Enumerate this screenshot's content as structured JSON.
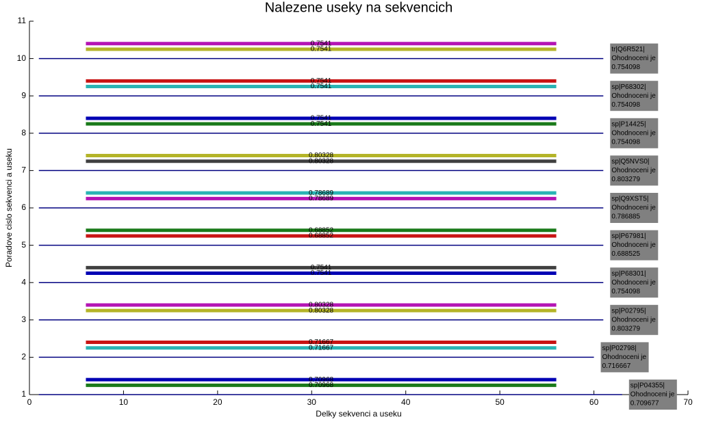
{
  "chart_data": {
    "type": "segments",
    "title": "Nalezene useky na sekvencich",
    "xlabel": "Delky sekvenci a useku",
    "ylabel": "Poradove cislo sekvenci a useku",
    "xlim": [
      0,
      70
    ],
    "ylim": [
      1,
      11
    ],
    "xticks": [
      0,
      10,
      20,
      30,
      40,
      50,
      60,
      70
    ],
    "yticks": [
      1,
      2,
      3,
      4,
      5,
      6,
      7,
      8,
      9,
      10,
      11
    ],
    "sequence_color": "#000080",
    "sequences": [
      {
        "y": 1,
        "x": [
          1,
          63
        ],
        "name": "sp|P04355|",
        "caption": "Ohodnoceni je",
        "score": 0.709677,
        "segments": [
          {
            "y": 1.4,
            "x": [
              6,
              56
            ],
            "value": 0.70968,
            "color": "#0000b4"
          },
          {
            "y": 1.25,
            "x": [
              6,
              56
            ],
            "value": 0.70968,
            "color": "#1a7a1a"
          }
        ]
      },
      {
        "y": 2,
        "x": [
          1,
          60
        ],
        "name": "sp|P02798|",
        "caption": "Ohodnoceni je",
        "score": 0.716667,
        "segments": [
          {
            "y": 2.4,
            "x": [
              6,
              56
            ],
            "value": 0.71667,
            "color": "#c81414"
          },
          {
            "y": 2.25,
            "x": [
              6,
              56
            ],
            "value": 0.71667,
            "color": "#2ab4b4"
          }
        ]
      },
      {
        "y": 3,
        "x": [
          1,
          61
        ],
        "name": "sp|P02795|",
        "caption": "Ohodnoceni je",
        "score": 0.803279,
        "segments": [
          {
            "y": 3.4,
            "x": [
              6,
              56
            ],
            "value": 0.80328,
            "color": "#b414b4"
          },
          {
            "y": 3.25,
            "x": [
              6,
              56
            ],
            "value": 0.80328,
            "color": "#b4b428"
          }
        ]
      },
      {
        "y": 4,
        "x": [
          1,
          61
        ],
        "name": "sp|P68301|",
        "caption": "Ohodnoceni je",
        "score": 0.754098,
        "segments": [
          {
            "y": 4.4,
            "x": [
              6,
              56
            ],
            "value": 0.7541,
            "color": "#404040"
          },
          {
            "y": 4.25,
            "x": [
              6,
              56
            ],
            "value": 0.7541,
            "color": "#0000b4"
          }
        ]
      },
      {
        "y": 5,
        "x": [
          1,
          61
        ],
        "name": "sp|P67981|",
        "caption": "Ohodnoceni je",
        "score": 0.688525,
        "segments": [
          {
            "y": 5.4,
            "x": [
              6,
              56
            ],
            "value": 0.68852,
            "color": "#1a7a1a"
          },
          {
            "y": 5.25,
            "x": [
              6,
              56
            ],
            "value": 0.68852,
            "color": "#c81414"
          }
        ]
      },
      {
        "y": 6,
        "x": [
          1,
          61
        ],
        "name": "sp|Q9XST5|",
        "caption": "Ohodnoceni je",
        "score": 0.786885,
        "segments": [
          {
            "y": 6.4,
            "x": [
              6,
              56
            ],
            "value": 0.78689,
            "color": "#2ab4b4"
          },
          {
            "y": 6.25,
            "x": [
              6,
              56
            ],
            "value": 0.78689,
            "color": "#b414b4"
          }
        ]
      },
      {
        "y": 7,
        "x": [
          1,
          61
        ],
        "name": "sp|Q5NVS0|",
        "caption": "Ohodnoceni je",
        "score": 0.803279,
        "segments": [
          {
            "y": 7.4,
            "x": [
              6,
              56
            ],
            "value": 0.80328,
            "color": "#b4b428"
          },
          {
            "y": 7.25,
            "x": [
              6,
              56
            ],
            "value": 0.80328,
            "color": "#404040"
          }
        ]
      },
      {
        "y": 8,
        "x": [
          1,
          61
        ],
        "name": "sp|P14425|",
        "caption": "Ohodnoceni je",
        "score": 0.754098,
        "segments": [
          {
            "y": 8.4,
            "x": [
              6,
              56
            ],
            "value": 0.7541,
            "color": "#0000b4"
          },
          {
            "y": 8.25,
            "x": [
              6,
              56
            ],
            "value": 0.7541,
            "color": "#1a7a1a"
          }
        ]
      },
      {
        "y": 9,
        "x": [
          1,
          61
        ],
        "name": "sp|P68302|",
        "caption": "Ohodnoceni je",
        "score": 0.754098,
        "segments": [
          {
            "y": 9.4,
            "x": [
              6,
              56
            ],
            "value": 0.7541,
            "color": "#c81414"
          },
          {
            "y": 9.25,
            "x": [
              6,
              56
            ],
            "value": 0.7541,
            "color": "#2ab4b4"
          }
        ]
      },
      {
        "y": 10,
        "x": [
          1,
          61
        ],
        "name": "tr|Q6R521|",
        "caption": "Ohodnoceni je",
        "score": 0.754098,
        "segments": [
          {
            "y": 10.4,
            "x": [
              6,
              56
            ],
            "value": 0.7541,
            "color": "#b414b4"
          },
          {
            "y": 10.25,
            "x": [
              6,
              56
            ],
            "value": 0.7541,
            "color": "#b4b428"
          }
        ]
      }
    ]
  }
}
